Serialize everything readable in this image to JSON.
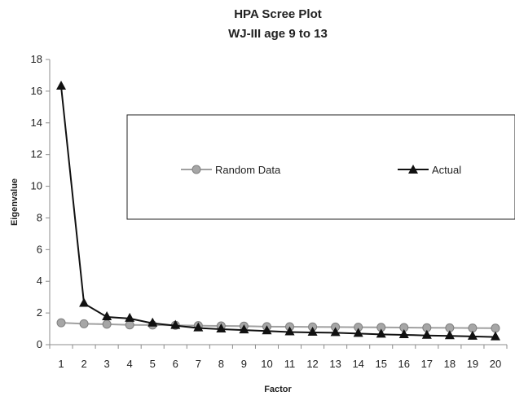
{
  "chart_data": {
    "type": "line",
    "title": "HPA Scree Plot",
    "subtitle": "WJ-III age 9 to 13",
    "xlabel": "Factor",
    "ylabel": "Eigenvalue",
    "ylim": [
      0,
      18
    ],
    "ytick_step": 2,
    "x": [
      1,
      2,
      3,
      4,
      5,
      6,
      7,
      8,
      9,
      10,
      11,
      12,
      13,
      14,
      15,
      16,
      17,
      18,
      19,
      20
    ],
    "grid": false,
    "legend_position": "center",
    "series": [
      {
        "name": "Random Data",
        "marker": "circle",
        "line_color": "#a0a0a0",
        "marker_color": "#a6a6a6",
        "values": [
          1.38,
          1.32,
          1.29,
          1.25,
          1.24,
          1.22,
          1.2,
          1.18,
          1.17,
          1.14,
          1.13,
          1.12,
          1.11,
          1.1,
          1.09,
          1.08,
          1.07,
          1.06,
          1.05,
          1.04
        ]
      },
      {
        "name": "Actual",
        "marker": "triangle",
        "line_color": "#111111",
        "marker_color": "#111111",
        "values": [
          16.3,
          2.6,
          1.75,
          1.65,
          1.35,
          1.2,
          1.05,
          0.98,
          0.92,
          0.86,
          0.8,
          0.77,
          0.75,
          0.7,
          0.65,
          0.62,
          0.58,
          0.55,
          0.52,
          0.48
        ]
      }
    ]
  }
}
